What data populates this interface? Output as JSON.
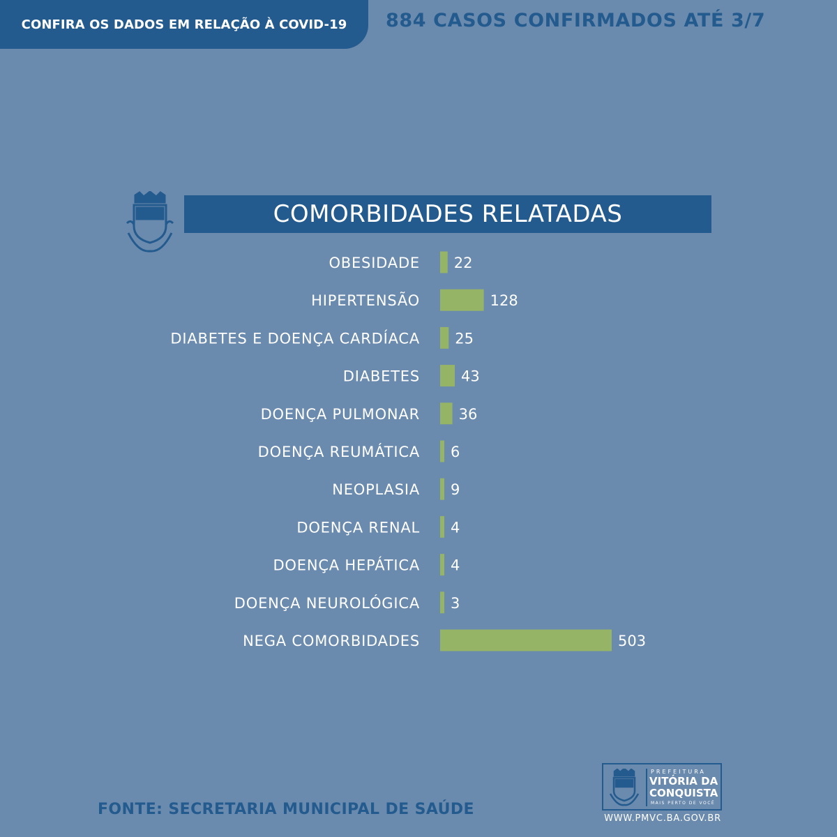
{
  "header": {
    "tab_label": "CONFIRA OS DADOS EM RELAÇÃO À COVID-19",
    "cases_text": "884 CASOS CONFIRMADOS ATÉ 3/7"
  },
  "colors": {
    "background": "#6a8aae",
    "dark_blue": "#245b8e",
    "bar_green": "#96b466",
    "text_white": "#ffffff"
  },
  "chart_data": {
    "type": "bar",
    "orientation": "horizontal",
    "title": "COMORBIDADES RELATADAS",
    "categories": [
      "OBESIDADE",
      "HIPERTENSÃO",
      "DIABETES E DOENÇA CARDÍACA",
      "DIABETES",
      "DOENÇA PULMONAR",
      "DOENÇA REUMÁTICA",
      "NEOPLASIA",
      "DOENÇA RENAL",
      "DOENÇA HEPÁTICA",
      "DOENÇA NEUROLÓGICA",
      "NEGA COMORBIDADES"
    ],
    "values": [
      22,
      128,
      25,
      43,
      36,
      6,
      9,
      4,
      4,
      3,
      503
    ],
    "xlabel": "",
    "ylabel": "",
    "grid": false,
    "legend": "none"
  },
  "footer": {
    "source": "FONTE: SECRETARIA MUNICIPAL DE SAÚDE",
    "logo_small": "PREFEITURA",
    "logo_name_line1": "VITÓRIA DA",
    "logo_name_line2": "CONQUISTA",
    "logo_tagline": "MAIS PERTO DE VOCÊ",
    "url": "WWW.PMVC.BA.GOV.BR"
  }
}
